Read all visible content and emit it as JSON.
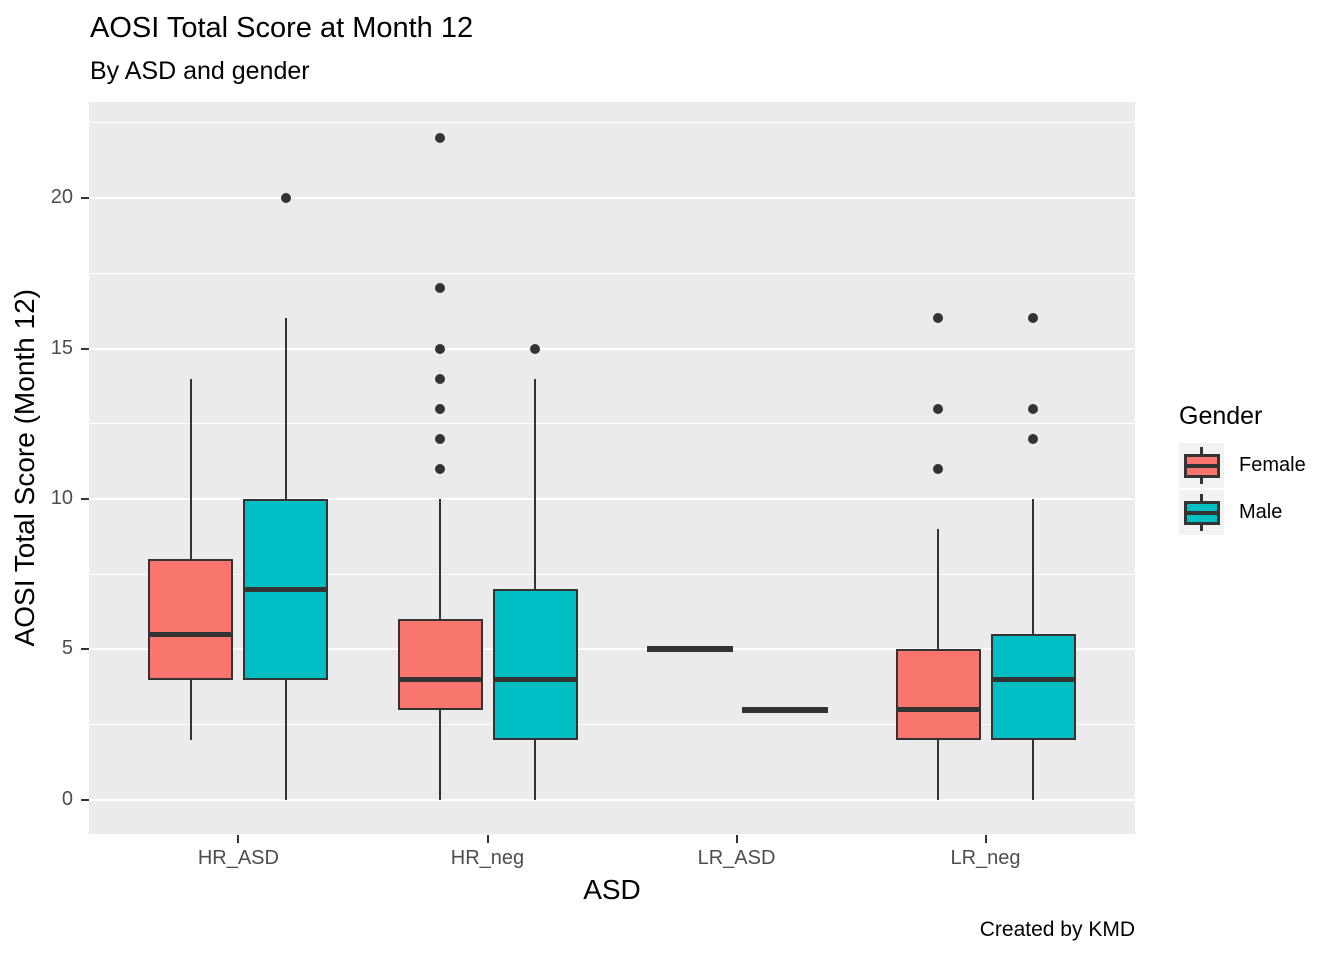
{
  "title": "AOSI Total Score at Month 12",
  "subtitle": "By ASD and gender",
  "caption": "Created by KMD",
  "legend": {
    "title": "Gender",
    "entries": [
      {
        "label": "Female",
        "color": "#F8766D"
      },
      {
        "label": "Male",
        "color": "#00BFC4"
      }
    ]
  },
  "colors": {
    "female": "#F8766D",
    "male": "#00BFC4",
    "panel_background": "#EBEBEB",
    "gridline": "#FFFFFF",
    "box_outline": "#333333",
    "tick_text": "#4D4D4D"
  },
  "chart_data": {
    "type": "boxplot",
    "title": "AOSI Total Score at Month 12",
    "subtitle": "By ASD and gender",
    "xlabel": "ASD",
    "ylabel": "AOSI Total Score (Month 12)",
    "categories": [
      "HR_ASD",
      "HR_neg",
      "LR_ASD",
      "LR_neg"
    ],
    "y_ticks": [
      0,
      5,
      10,
      15,
      20
    ],
    "y_minor_gridlines": [
      2.5,
      7.5,
      12.5,
      17.5,
      22.5
    ],
    "ylim": [
      -1.13,
      23.19
    ],
    "grid": "major-and-minor",
    "legend_position": "right",
    "series": [
      {
        "name": "Female",
        "color": "#F8766D",
        "boxes": [
          {
            "category": "HR_ASD",
            "whisker_low": 2,
            "q1": 4,
            "median": 5.5,
            "q3": 8,
            "whisker_high": 14,
            "outliers": []
          },
          {
            "category": "HR_neg",
            "whisker_low": 0,
            "q1": 3,
            "median": 4,
            "q3": 6,
            "whisker_high": 10,
            "outliers": [
              11,
              12,
              13,
              14,
              15,
              17,
              22
            ]
          },
          {
            "category": "LR_ASD",
            "whisker_low": 5,
            "q1": 5,
            "median": 5,
            "q3": 5,
            "whisker_high": 5,
            "outliers": []
          },
          {
            "category": "LR_neg",
            "whisker_low": 0,
            "q1": 2,
            "median": 3,
            "q3": 5,
            "whisker_high": 9,
            "outliers": [
              11,
              13,
              16
            ]
          }
        ]
      },
      {
        "name": "Male",
        "color": "#00BFC4",
        "boxes": [
          {
            "category": "HR_ASD",
            "whisker_low": 0,
            "q1": 4,
            "median": 7,
            "q3": 10,
            "whisker_high": 16,
            "outliers": [
              20
            ]
          },
          {
            "category": "HR_neg",
            "whisker_low": 0,
            "q1": 2,
            "median": 4,
            "q3": 7,
            "whisker_high": 14,
            "outliers": [
              15
            ]
          },
          {
            "category": "LR_ASD",
            "whisker_low": 3,
            "q1": 3,
            "median": 3,
            "q3": 3,
            "whisker_high": 3,
            "outliers": []
          },
          {
            "category": "LR_neg",
            "whisker_low": 0,
            "q1": 2,
            "median": 4,
            "q3": 5.5,
            "whisker_high": 10,
            "outliers": [
              12,
              13,
              16
            ]
          }
        ]
      }
    ]
  }
}
